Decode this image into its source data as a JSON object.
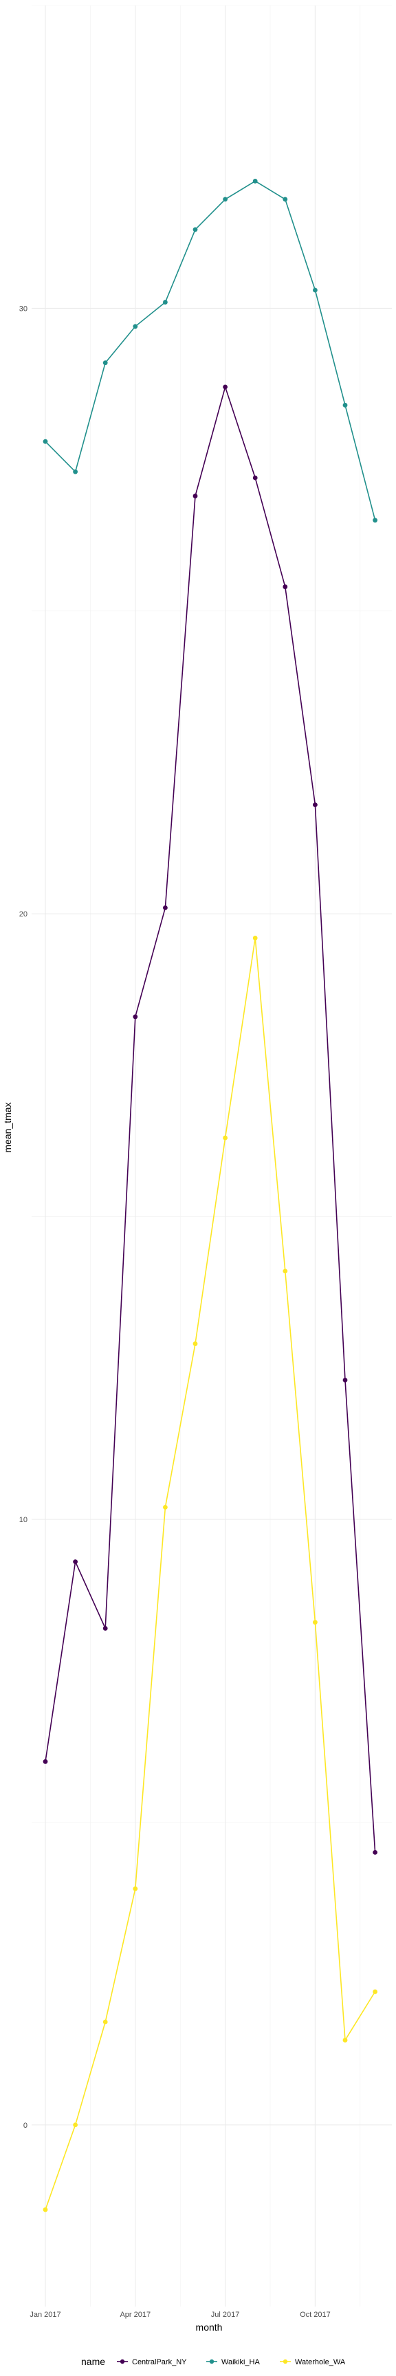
{
  "chart_data": {
    "type": "line",
    "xlabel": "month",
    "ylabel": "mean_tmax",
    "x_ticks": [
      "Jan 2017",
      "Apr 2017",
      "Jul 2017",
      "Oct 2017"
    ],
    "y_ticks": [
      0,
      10,
      20,
      30
    ],
    "ylim": [
      -3.0,
      35.0
    ],
    "grid": true,
    "legend_title": "name",
    "legend_position": "bottom",
    "x": [
      "Jan 2017",
      "Feb 2017",
      "Mar 2017",
      "Apr 2017",
      "May 2017",
      "Jun 2017",
      "Jul 2017",
      "Aug 2017",
      "Sep 2017",
      "Oct 2017",
      "Nov 2017",
      "Dec 2017"
    ],
    "series": [
      {
        "name": "CentralPark_NY",
        "color": "#440154",
        "values": [
          6.0,
          9.3,
          8.2,
          18.3,
          20.1,
          26.9,
          28.7,
          27.2,
          25.4,
          21.8,
          12.3,
          4.5
        ]
      },
      {
        "name": "Waikiki_HA",
        "color": "#21908C",
        "values": [
          27.8,
          27.3,
          29.1,
          29.7,
          30.1,
          31.3,
          31.8,
          32.1,
          31.8,
          30.3,
          28.4,
          26.5
        ]
      },
      {
        "name": "Waterhole_WA",
        "color": "#FDE725",
        "values": [
          -1.4,
          0.0,
          1.7,
          3.9,
          10.2,
          12.9,
          16.3,
          19.6,
          14.1,
          8.3,
          1.4,
          2.2
        ]
      }
    ]
  }
}
